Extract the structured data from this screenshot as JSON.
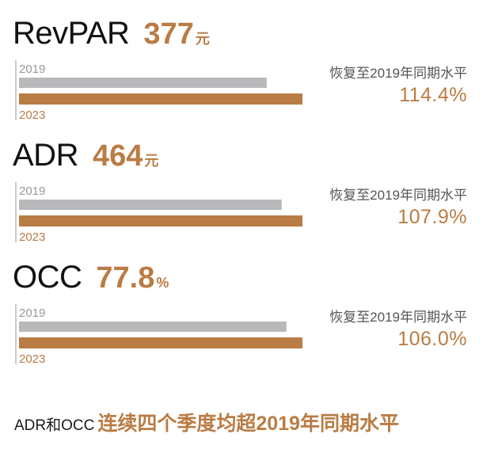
{
  "colors": {
    "accent": "#BA7C45",
    "bar_2019": "#B9B9BB",
    "axis": "#C9C9C9"
  },
  "metrics": [
    {
      "name": "RevPAR",
      "value": "377",
      "unit": "元",
      "year_a": "2019",
      "year_b": "2023",
      "recovery_label": "恢复至2019年同期水平",
      "recovery_value": "114.4%"
    },
    {
      "name": "ADR",
      "value": "464",
      "unit": "元",
      "year_a": "2019",
      "year_b": "2023",
      "recovery_label": "恢复至2019年同期水平",
      "recovery_value": "107.9%"
    },
    {
      "name": "OCC",
      "value": "77.8",
      "unit": "%",
      "year_a": "2019",
      "year_b": "2023",
      "recovery_label": "恢复至2019年同期水平",
      "recovery_value": "106.0%"
    }
  ],
  "footer": {
    "prefix": "ADR和OCC",
    "main": "连续四个季度均超2019年同期水平"
  },
  "chart_data": [
    {
      "type": "bar",
      "title": "RevPAR 377元",
      "categories": [
        "2019",
        "2023"
      ],
      "values": [
        329.5,
        377
      ],
      "annotation": "恢复至2019年同期水平 114.4%"
    },
    {
      "type": "bar",
      "title": "ADR 464元",
      "categories": [
        "2019",
        "2023"
      ],
      "values": [
        430,
        464
      ],
      "annotation": "恢复至2019年同期水平 107.9%"
    },
    {
      "type": "bar",
      "title": "OCC 77.8%",
      "categories": [
        "2019",
        "2023"
      ],
      "values": [
        73.4,
        77.8
      ],
      "annotation": "恢复至2019年同期水平 106.0%"
    }
  ]
}
